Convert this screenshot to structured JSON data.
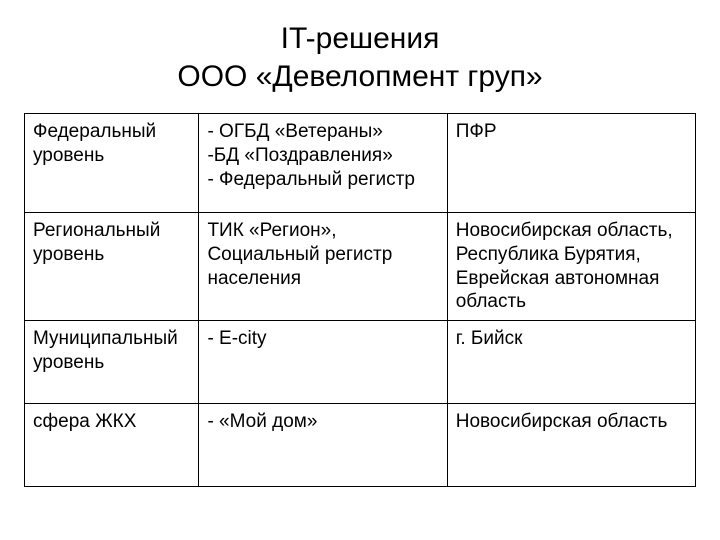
{
  "title_line1": "IT-решения",
  "title_line2": "ООО «Девелопмент груп»",
  "table": {
    "columns_widths_pct": [
      26,
      37,
      37
    ],
    "border_color": "#000000",
    "background_color": "#ffffff",
    "font_size_pt": 19,
    "rows": [
      {
        "c1": "Федеральный уровень",
        "c2_lines": [
          "- ОГБД «Ветераны»",
          "-БД «Поздравления»",
          "- Федеральный регистр"
        ],
        "c3": "ПФР"
      },
      {
        "c1": "Региональный уровень",
        "c2": "ТИК «Регион», Социальный регистр населения",
        "c3_lines": [
          "Новосибирская область, Республика Бурятия,",
          "Еврейская автономная область"
        ]
      },
      {
        "c1": "Муниципальный уровень",
        "c2": "- E-city",
        "c3": "г. Бийск"
      },
      {
        "c1": "сфера ЖКХ",
        "c2": "- «Мой дом»",
        "c3": "Новосибирская область"
      }
    ]
  }
}
